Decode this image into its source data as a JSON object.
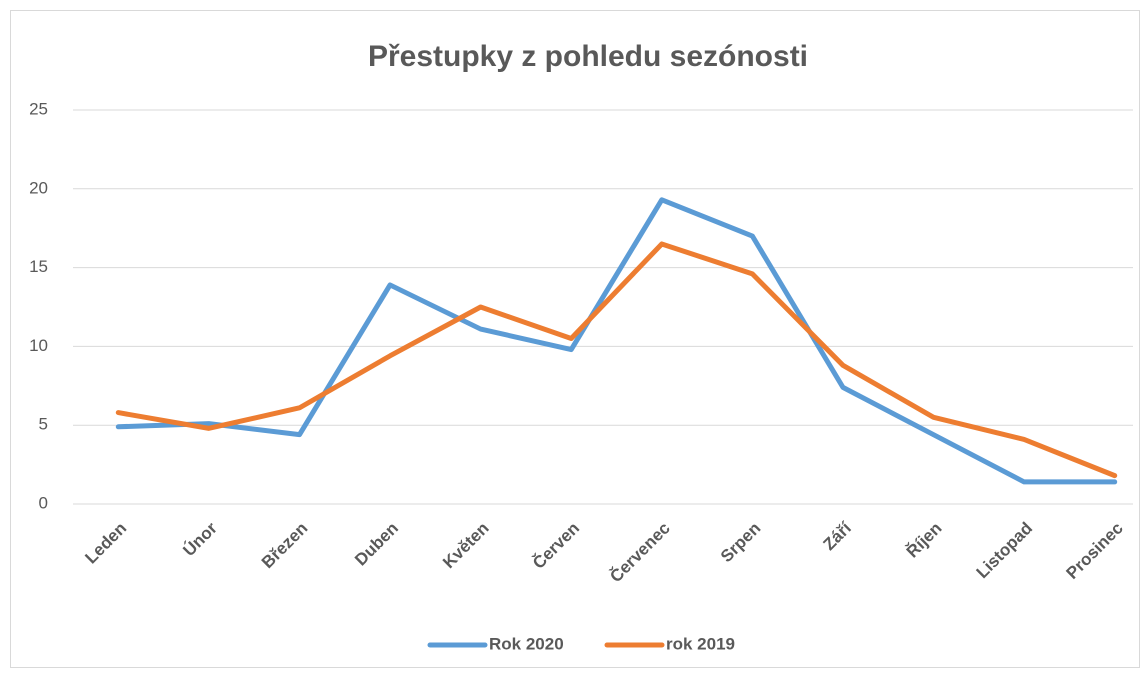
{
  "chart_data": {
    "type": "line",
    "title": "Přestupky z pohledu sezónosti",
    "categories": [
      "Leden",
      "Únor",
      "Březen",
      "Duben",
      "Květen",
      "Červen",
      "Červenec",
      "Srpen",
      "Září",
      "Říjen",
      "Listopad",
      "Prosinec"
    ],
    "series": [
      {
        "name": "Rok 2020",
        "color": "#5b9bd5",
        "values": [
          4.9,
          5.1,
          4.4,
          13.9,
          11.1,
          9.8,
          19.3,
          17.0,
          7.4,
          4.4,
          1.4,
          1.4
        ]
      },
      {
        "name": "rok 2019",
        "color": "#ed7d31",
        "values": [
          5.8,
          4.8,
          6.1,
          9.4,
          12.5,
          10.5,
          16.5,
          14.6,
          8.8,
          5.5,
          4.1,
          1.8
        ]
      }
    ],
    "ylim": [
      0,
      25
    ],
    "yticks": [
      0,
      5,
      10,
      15,
      20,
      25
    ],
    "grid": true,
    "legend": "bottom"
  }
}
